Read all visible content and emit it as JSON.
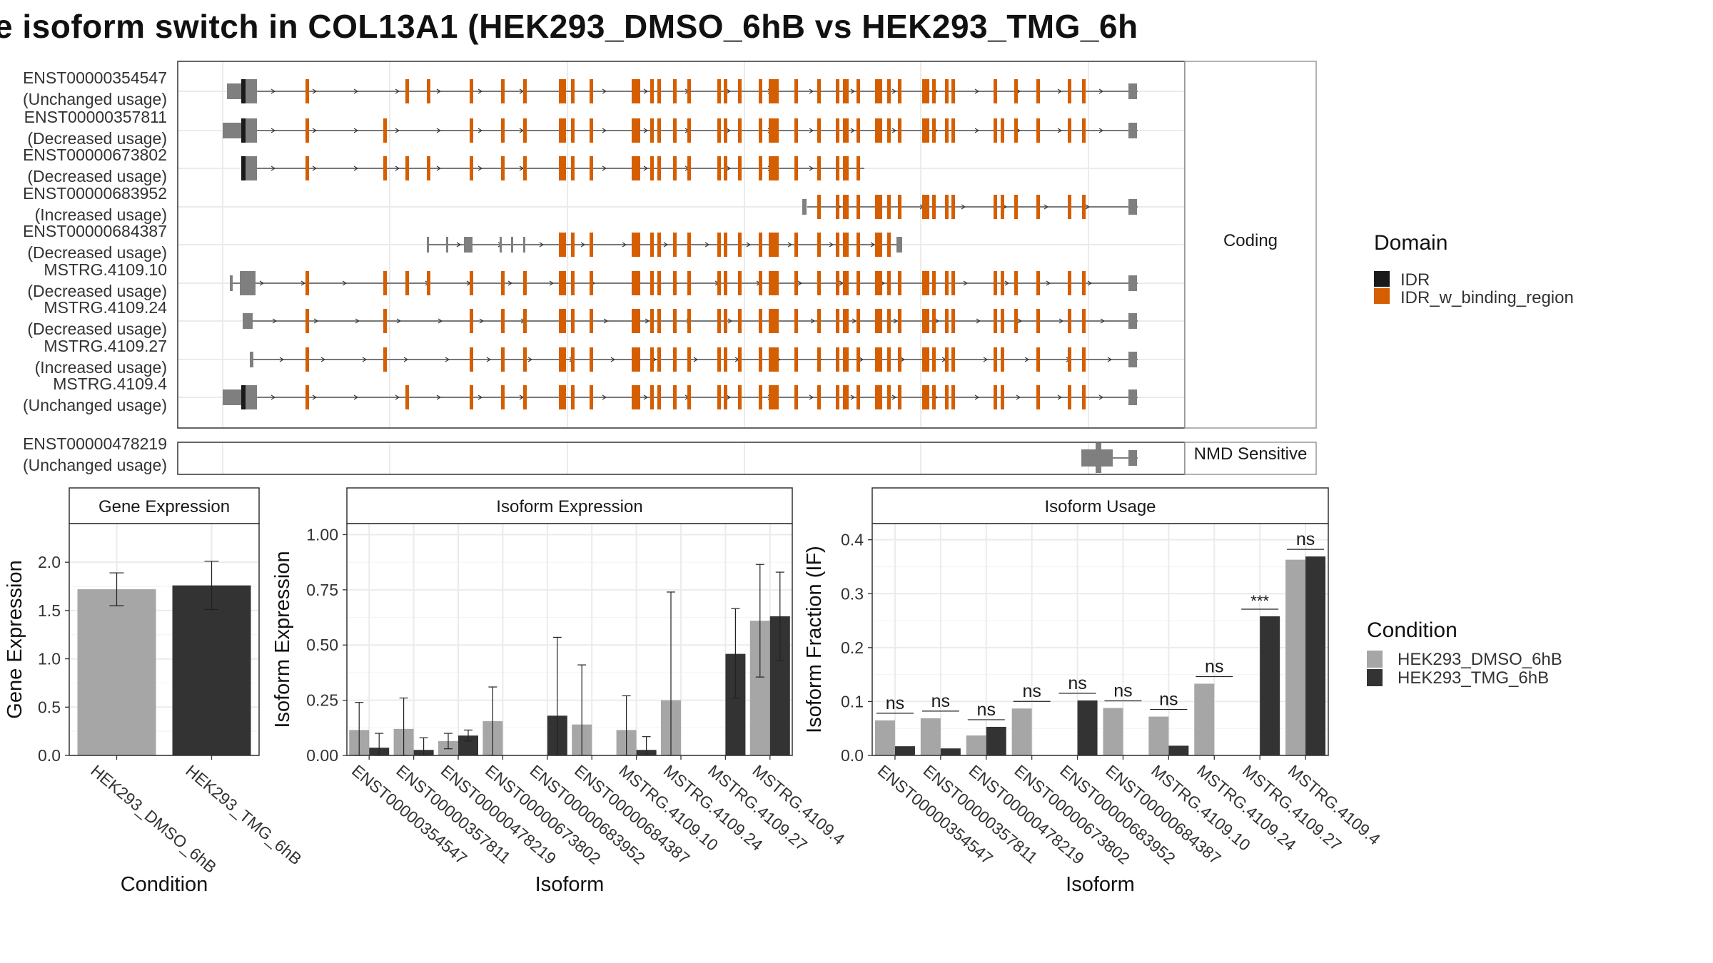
{
  "title": "e isoform switch in COL13A1 (HEK293_DMSO_6hB vs HEK293_TMG_6h",
  "colors": {
    "idr": "#1a1a1a",
    "idr_binding": "#d55e00",
    "utr": "#7f7f7f",
    "dmso": "#a6a6a6",
    "tmg": "#333333"
  },
  "structure": {
    "coding_strip": "Coding",
    "nmd_strip": "NMD Sensitive",
    "coding_isoforms": [
      {
        "id": "ENST00000354547",
        "usage": "(Unchanged usage)"
      },
      {
        "id": "ENST00000357811",
        "usage": "(Decreased usage)"
      },
      {
        "id": "ENST00000673802",
        "usage": "(Decreased usage)"
      },
      {
        "id": "ENST00000683952",
        "usage": "(Increased usage)"
      },
      {
        "id": "ENST00000684387",
        "usage": "(Decreased usage)"
      },
      {
        "id": "MSTRG.4109.10",
        "usage": "(Decreased usage)"
      },
      {
        "id": "MSTRG.4109.24",
        "usage": "(Decreased usage)"
      },
      {
        "id": "MSTRG.4109.27",
        "usage": "(Increased usage)"
      },
      {
        "id": "MSTRG.4109.4",
        "usage": "(Unchanged usage)"
      }
    ],
    "nmd_isoforms": [
      {
        "id": "ENST00000478219",
        "usage": "(Unchanged usage)"
      }
    ]
  },
  "domain_legend": {
    "title": "Domain",
    "items": [
      {
        "label": "IDR",
        "color": "#1a1a1a"
      },
      {
        "label": "IDR_w_binding_region",
        "color": "#d55e00"
      }
    ]
  },
  "condition_legend": {
    "title": "Condition",
    "items": [
      {
        "label": "HEK293_DMSO_6hB",
        "color": "#a6a6a6"
      },
      {
        "label": "HEK293_TMG_6hB",
        "color": "#333333"
      }
    ]
  },
  "chart_data": [
    {
      "type": "bar",
      "panel": "Gene Expression",
      "xlabel": "Condition",
      "ylabel": "Gene Expression",
      "ylim": [
        0,
        2.4
      ],
      "yticks": [
        "0.0",
        "0.5",
        "1.0",
        "1.5",
        "2.0"
      ],
      "categories": [
        "HEK293_DMSO_6hB",
        "HEK293_TMG_6hB"
      ],
      "values": [
        1.72,
        1.76
      ],
      "errors": [
        [
          1.55,
          1.89
        ],
        [
          1.51,
          2.01
        ]
      ]
    },
    {
      "type": "bar",
      "panel": "Isoform Expression",
      "xlabel": "Isoform",
      "ylabel": "Isoform Expression",
      "ylim": [
        0,
        1.05
      ],
      "yticks": [
        "0.00",
        "0.25",
        "0.50",
        "0.75",
        "1.00"
      ],
      "categories": [
        "ENST00000354547",
        "ENST00000357811",
        "ENST00000478219",
        "ENST00000673802",
        "ENST00000683952",
        "ENST00000684387",
        "MSTRG.4109.10",
        "MSTRG.4109.24",
        "MSTRG.4109.27",
        "MSTRG.4109.4"
      ],
      "series": [
        {
          "name": "HEK293_DMSO_6hB",
          "values": [
            0.115,
            0.12,
            0.065,
            0.155,
            0.0,
            0.14,
            0.115,
            0.25,
            0.0,
            0.61
          ],
          "errors": [
            [
              0,
              0.24
            ],
            [
              0,
              0.26
            ],
            [
              0.03,
              0.1
            ],
            [
              0,
              0.31
            ],
            null,
            [
              0,
              0.41
            ],
            [
              0,
              0.27
            ],
            [
              0,
              0.74
            ],
            null,
            [
              0.355,
              0.865
            ]
          ]
        },
        {
          "name": "HEK293_TMG_6hB",
          "values": [
            0.035,
            0.025,
            0.09,
            0.0,
            0.18,
            0.0,
            0.025,
            0.0,
            0.46,
            0.63
          ],
          "errors": [
            [
              0,
              0.1
            ],
            [
              0,
              0.08
            ],
            [
              0.065,
              0.115
            ],
            null,
            [
              0,
              0.535
            ],
            null,
            [
              0,
              0.085
            ],
            null,
            [
              0.26,
              0.665
            ],
            [
              0.43,
              0.83
            ]
          ]
        }
      ]
    },
    {
      "type": "bar",
      "panel": "Isoform Usage",
      "xlabel": "Isoform",
      "ylabel": "Isoform Fraction (IF)",
      "ylim": [
        0,
        0.43
      ],
      "yticks": [
        "0.0",
        "0.1",
        "0.2",
        "0.3",
        "0.4"
      ],
      "categories": [
        "ENST00000354547",
        "ENST00000357811",
        "ENST00000478219",
        "ENST00000673802",
        "ENST00000683952",
        "ENST00000684387",
        "MSTRG.4109.10",
        "MSTRG.4109.24",
        "MSTRG.4109.27",
        "MSTRG.4109.4"
      ],
      "series": [
        {
          "name": "HEK293_DMSO_6hB",
          "values": [
            0.065,
            0.069,
            0.037,
            0.087,
            0.0,
            0.088,
            0.072,
            0.133,
            0.0,
            0.363
          ]
        },
        {
          "name": "HEK293_TMG_6hB",
          "values": [
            0.017,
            0.013,
            0.053,
            0.0,
            0.102,
            0.0,
            0.018,
            0.0,
            0.258,
            0.369
          ]
        }
      ],
      "significance": [
        "ns",
        "ns",
        "ns",
        "ns",
        "ns",
        "ns",
        "ns",
        "ns",
        "***",
        "ns"
      ]
    }
  ]
}
